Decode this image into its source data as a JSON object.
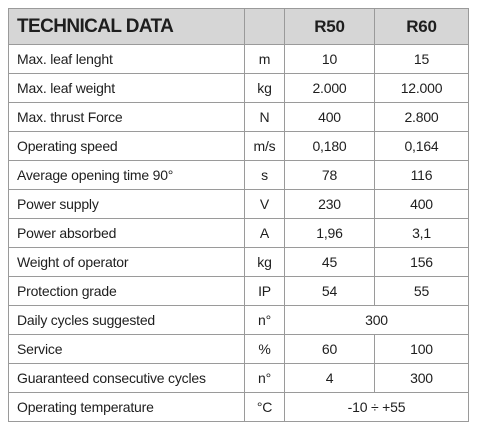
{
  "table": {
    "title": "TECHNICAL DATA",
    "columns": [
      "R50",
      "R60"
    ],
    "rows": [
      [
        "Max. leaf lenght",
        "m",
        "10",
        "15"
      ],
      [
        "Max. leaf weight",
        "kg",
        "2.000",
        "12.000"
      ],
      [
        "Max. thrust Force",
        "N",
        "400",
        "2.800"
      ],
      [
        "Operating speed",
        "m/s",
        "0,180",
        "0,164"
      ],
      [
        "Average opening time 90°",
        "s",
        "78",
        "116"
      ],
      [
        "Power supply",
        "V",
        "230",
        "400"
      ],
      [
        "Power absorbed",
        "A",
        "1,96",
        "3,1"
      ],
      [
        "Weight of operator",
        "kg",
        "45",
        "156"
      ],
      [
        "Protection grade",
        "IP",
        "54",
        "55"
      ],
      [
        "Daily cycles suggested",
        "n°",
        "300"
      ],
      [
        "Service",
        "%",
        "60",
        "100"
      ],
      [
        "Guaranteed consecutive cycles",
        "n°",
        "4",
        "300"
      ],
      [
        "Operating temperature",
        "°C",
        "-10 ÷ +55"
      ]
    ]
  }
}
